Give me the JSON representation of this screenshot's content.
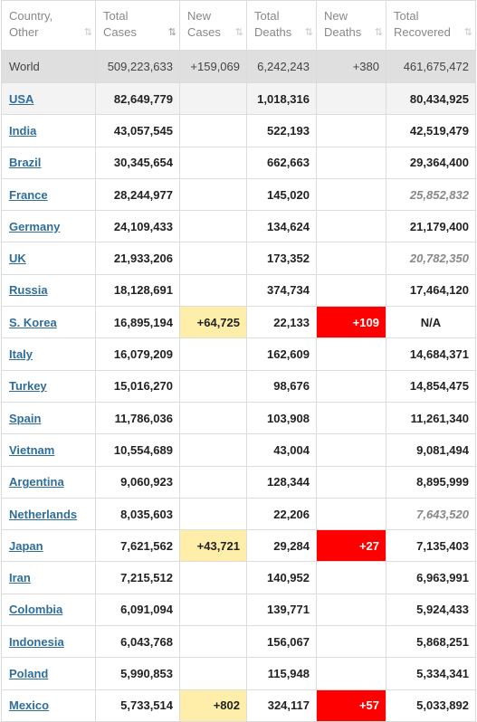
{
  "headers": [
    {
      "line1": "Country,",
      "line2": "Other",
      "sort": "⇅",
      "active": false
    },
    {
      "line1": "Total",
      "line2": "Cases",
      "sort": "⇅",
      "active": true
    },
    {
      "line1": "New",
      "line2": "Cases",
      "sort": "⇅",
      "active": false
    },
    {
      "line1": "Total",
      "line2": "Deaths",
      "sort": "⇅",
      "active": false
    },
    {
      "line1": "New",
      "line2": "Deaths",
      "sort": "⇅",
      "active": false
    },
    {
      "line1": "Total",
      "line2": "Recovered",
      "sort": "⇅",
      "active": false
    }
  ],
  "world": {
    "country": "World",
    "total_cases": "509,223,633",
    "new_cases": "+159,069",
    "total_deaths": "6,242,243",
    "new_deaths": "+380",
    "total_recovered": "461,675,472"
  },
  "rows": [
    {
      "country": "USA",
      "total_cases": "82,649,779",
      "new_cases": "",
      "total_deaths": "1,018,316",
      "new_deaths": "",
      "total_recovered": "80,434,925"
    },
    {
      "country": "India",
      "total_cases": "43,057,545",
      "new_cases": "",
      "total_deaths": "522,193",
      "new_deaths": "",
      "total_recovered": "42,519,479"
    },
    {
      "country": "Brazil",
      "total_cases": "30,345,654",
      "new_cases": "",
      "total_deaths": "662,663",
      "new_deaths": "",
      "total_recovered": "29,364,400"
    },
    {
      "country": "France",
      "total_cases": "28,244,977",
      "new_cases": "",
      "total_deaths": "145,020",
      "new_deaths": "",
      "total_recovered": "25,852,832"
    },
    {
      "country": "Germany",
      "total_cases": "24,109,433",
      "new_cases": "",
      "total_deaths": "134,624",
      "new_deaths": "",
      "total_recovered": "21,179,400"
    },
    {
      "country": "UK",
      "total_cases": "21,933,206",
      "new_cases": "",
      "total_deaths": "173,352",
      "new_deaths": "",
      "total_recovered": "20,782,350"
    },
    {
      "country": "Russia",
      "total_cases": "18,128,691",
      "new_cases": "",
      "total_deaths": "374,734",
      "new_deaths": "",
      "total_recovered": "17,464,120"
    },
    {
      "country": "S. Korea",
      "total_cases": "16,895,194",
      "new_cases": "+64,725",
      "total_deaths": "22,133",
      "new_deaths": "+109",
      "total_recovered": "N/A"
    },
    {
      "country": "Italy",
      "total_cases": "16,079,209",
      "new_cases": "",
      "total_deaths": "162,609",
      "new_deaths": "",
      "total_recovered": "14,684,371"
    },
    {
      "country": "Turkey",
      "total_cases": "15,016,270",
      "new_cases": "",
      "total_deaths": "98,676",
      "new_deaths": "",
      "total_recovered": "14,854,475"
    },
    {
      "country": "Spain",
      "total_cases": "11,786,036",
      "new_cases": "",
      "total_deaths": "103,908",
      "new_deaths": "",
      "total_recovered": "11,261,340"
    },
    {
      "country": "Vietnam",
      "total_cases": "10,554,689",
      "new_cases": "",
      "total_deaths": "43,004",
      "new_deaths": "",
      "total_recovered": "9,081,494"
    },
    {
      "country": "Argentina",
      "total_cases": "9,060,923",
      "new_cases": "",
      "total_deaths": "128,344",
      "new_deaths": "",
      "total_recovered": "8,895,999"
    },
    {
      "country": "Netherlands",
      "total_cases": "8,035,603",
      "new_cases": "",
      "total_deaths": "22,206",
      "new_deaths": "",
      "total_recovered": "7,643,520"
    },
    {
      "country": "Japan",
      "total_cases": "7,621,562",
      "new_cases": "+43,721",
      "total_deaths": "29,284",
      "new_deaths": "+27",
      "total_recovered": "7,135,403"
    },
    {
      "country": "Iran",
      "total_cases": "7,215,512",
      "new_cases": "",
      "total_deaths": "140,952",
      "new_deaths": "",
      "total_recovered": "6,963,991"
    },
    {
      "country": "Colombia",
      "total_cases": "6,091,094",
      "new_cases": "",
      "total_deaths": "139,771",
      "new_deaths": "",
      "total_recovered": "5,924,433"
    },
    {
      "country": "Indonesia",
      "total_cases": "6,043,768",
      "new_cases": "",
      "total_deaths": "156,067",
      "new_deaths": "",
      "total_recovered": "5,868,251"
    },
    {
      "country": "Poland",
      "total_cases": "5,990,853",
      "new_cases": "",
      "total_deaths": "115,948",
      "new_deaths": "",
      "total_recovered": "5,334,341"
    },
    {
      "country": "Mexico",
      "total_cases": "5,733,514",
      "new_cases": "+802",
      "total_deaths": "324,117",
      "new_deaths": "+57",
      "total_recovered": "5,033,892"
    }
  ],
  "italic_recovered": [
    "France",
    "UK",
    "Netherlands"
  ],
  "colors": {
    "new_cases_bg": "#ffeeaa",
    "new_deaths_bg": "#ff0000",
    "link": "#2f6e9a",
    "world_bg": "#dfdfdf"
  }
}
